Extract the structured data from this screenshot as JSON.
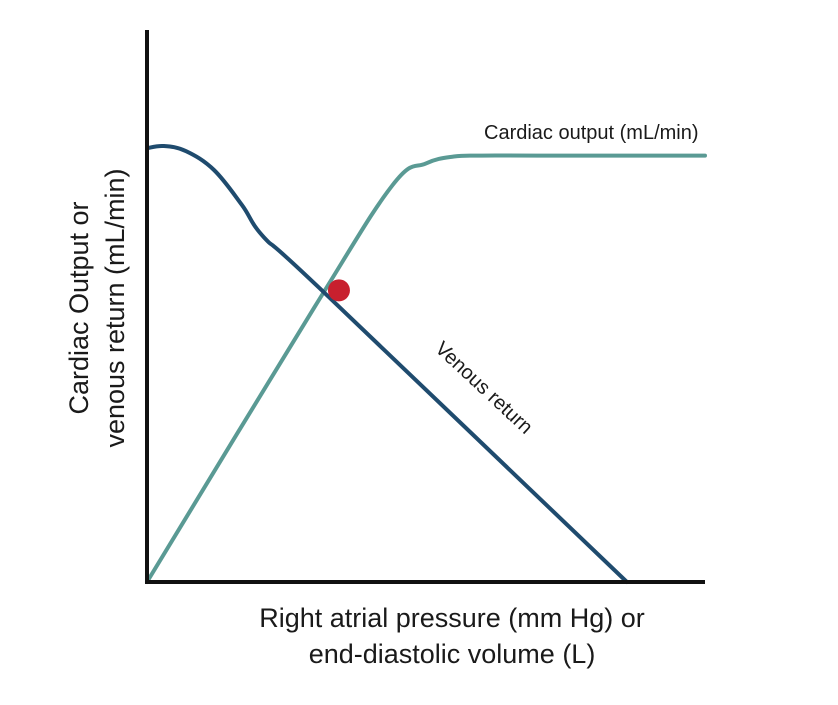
{
  "chart_data": {
    "type": "line",
    "title": "",
    "xlabel_lines": [
      "Right atrial pressure (mm Hg) or",
      "end-diastolic volume (L)"
    ],
    "ylabel_lines": [
      "Cardiac Output or",
      "venous return (mL/min)"
    ],
    "xlim": [
      0,
      100
    ],
    "ylim": [
      0,
      100
    ],
    "ticks_shown": false,
    "grid": false,
    "legend": "none",
    "series": [
      {
        "name": "Cardiac output (mL/min)",
        "color": "#5a9a94",
        "x": [
          0,
          30,
          44,
          50,
          55,
          60,
          70,
          100
        ],
        "y": [
          0,
          63,
          91,
          96,
          97.6,
          97.8,
          97.8,
          97.8
        ]
      },
      {
        "name": "Venous return",
        "color": "#1f4b6e",
        "x": [
          0,
          3,
          7,
          12,
          17,
          21,
          31,
          86
        ],
        "y": [
          99.5,
          100,
          98.8,
          94.5,
          86.5,
          79,
          67.3,
          0
        ]
      }
    ],
    "annotations": [
      {
        "type": "point",
        "label": "equilibrium",
        "color": "#c8202e",
        "x": 34.4,
        "y": 66.9
      }
    ]
  }
}
